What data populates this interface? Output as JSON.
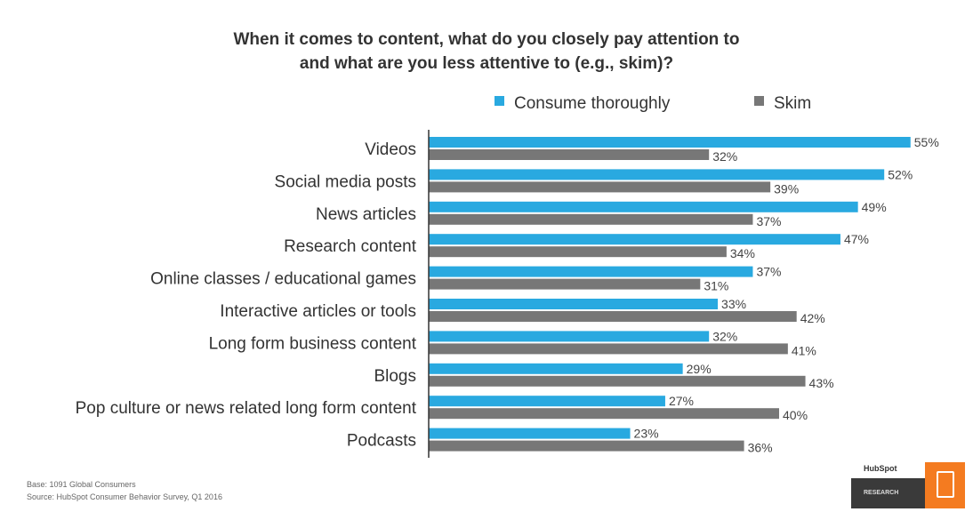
{
  "chart_data": {
    "type": "bar",
    "orientation": "horizontal",
    "title": "When it comes to content, what do you closely pay attention to",
    "subtitle": "and what are you less attentive to (e.g., skim)?",
    "categories": [
      "Videos",
      "Social media posts",
      "News articles",
      "Research content",
      "Online classes / educational games",
      "Interactive articles or tools",
      "Long form business content",
      "Blogs",
      "Pop culture or news related long form content",
      "Podcasts"
    ],
    "series": [
      {
        "name": "Consume thoroughly",
        "color": "#29a9e0",
        "values": [
          55,
          52,
          49,
          47,
          37,
          33,
          32,
          29,
          27,
          23
        ]
      },
      {
        "name": "Skim",
        "color": "#777777",
        "values": [
          32,
          39,
          37,
          34,
          31,
          42,
          41,
          43,
          40,
          36
        ]
      }
    ],
    "value_format": "percent",
    "xlim": [
      0,
      60
    ],
    "grid": false,
    "legend": "top"
  },
  "footer": {
    "base": "Base: 1091 Global Consumers",
    "source": "Source: HubSpot Consumer Behavior Survey, Q1 2016"
  },
  "logo": {
    "brand": "HubSpot",
    "label": "RESEARCH",
    "color": "#f47b20"
  }
}
